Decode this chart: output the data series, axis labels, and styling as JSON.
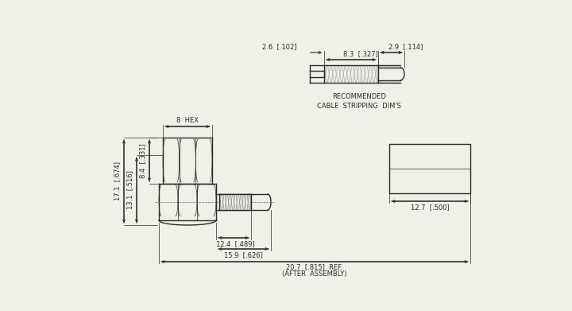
{
  "bg_color": "#f0efe8",
  "line_color": "#2a2a2a",
  "line_width": 1.0,
  "thin_line": 0.5,
  "dim_color": "#2a2a2a",
  "text_color": "#2a2a2a",
  "font_size": 6.0,
  "annotations": {
    "hex_label": "8  HEX",
    "dim_29": "2.9  [.114]",
    "dim_83": "8.3  [.327]",
    "dim_26": "2.6  [.102]",
    "dim_331": "8.4  [.331]",
    "dim_516": "13.1  [.516]",
    "dim_674": "17.1  [.674]",
    "dim_489": "12.4  [.489]",
    "dim_626": "15.9  [.626]",
    "dim_815": "20.7  [.815]  REF.",
    "dim_after": "(AFTER  ASSEMBLY)",
    "dim_500": "12.7  [.500]",
    "rec_label1": "RECOMMENDED",
    "rec_label2": "CABLE  STRIPPING  DIM'S"
  }
}
